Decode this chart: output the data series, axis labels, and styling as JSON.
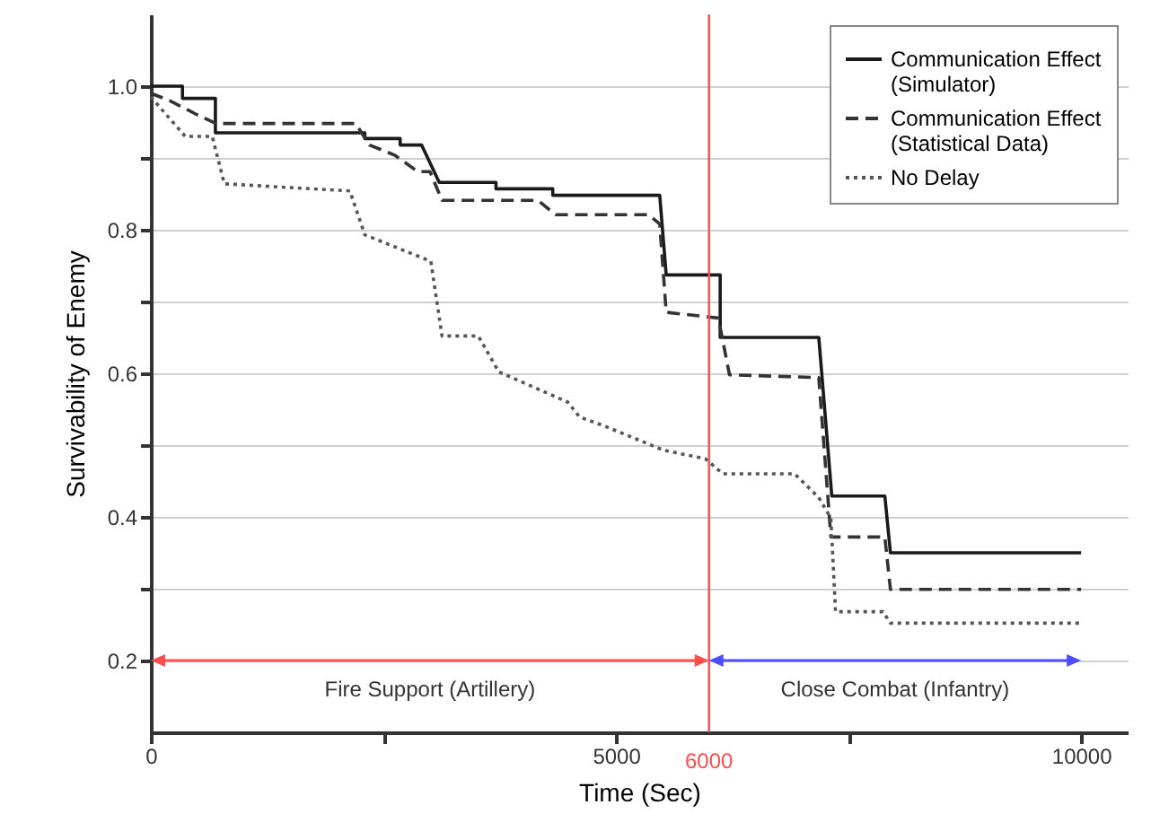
{
  "chart_data": {
    "type": "line",
    "xlabel": "Time (Sec)",
    "ylabel": "Survivability of Enemy",
    "xlim": [
      0,
      10500
    ],
    "xticks": [
      0,
      {
        "value": 2500,
        "label": null
      },
      5000,
      {
        "value": 7500,
        "label": null
      },
      10000
    ],
    "ylim": [
      0.1,
      1.1
    ],
    "yticks": [
      {
        "value": 0.2,
        "label": "0.2"
      },
      {
        "value": 0.3,
        "label": null
      },
      {
        "value": 0.4,
        "label": "0.4"
      },
      {
        "value": 0.5,
        "label": null
      },
      {
        "value": 0.6,
        "label": "0.6"
      },
      {
        "value": 0.7,
        "label": null
      },
      {
        "value": 0.8,
        "label": "0.8"
      },
      {
        "value": 0.9,
        "label": null
      },
      {
        "value": 1.0,
        "label": "1.0"
      }
    ],
    "grid": "y",
    "legend": "top right",
    "marker": "none",
    "series": [
      {
        "name": "Communication Effect (Simulator)",
        "color": "#1a1a1a",
        "line_style": "solid",
        "x": [
          0,
          340,
          340,
          694,
          694,
          2300,
          2300,
          2680,
          2680,
          2910,
          3100,
          3710,
          3710,
          4320,
          4320,
          5470,
          5540,
          6120,
          6120,
          7180,
          7320,
          7890,
          7950,
          10000
        ],
        "values": [
          1.0,
          1.0,
          0.983,
          0.983,
          0.935,
          0.935,
          0.927,
          0.927,
          0.918,
          0.918,
          0.866,
          0.866,
          0.857,
          0.857,
          0.848,
          0.848,
          0.737,
          0.737,
          0.65,
          0.65,
          0.429,
          0.429,
          0.35,
          0.35
        ]
      },
      {
        "name": "Communication Effect (Statistical Data)",
        "color": "#333333",
        "line_style": "dashed",
        "x": [
          0,
          200,
          500,
          700,
          2200,
          2350,
          2620,
          2870,
          3000,
          3130,
          4160,
          4350,
          5350,
          5470,
          5540,
          6100,
          6220,
          7180,
          7310,
          7890,
          7950,
          10000
        ],
        "values": [
          0.99,
          0.98,
          0.96,
          0.948,
          0.948,
          0.918,
          0.904,
          0.881,
          0.881,
          0.841,
          0.841,
          0.821,
          0.821,
          0.808,
          0.685,
          0.677,
          0.598,
          0.594,
          0.372,
          0.372,
          0.299,
          0.299
        ]
      },
      {
        "name": "No Delay",
        "color": "#555555",
        "line_style": "dotted",
        "x": [
          0,
          370,
          660,
          790,
          2140,
          2300,
          3010,
          3130,
          3520,
          3740,
          4480,
          4610,
          4870,
          5510,
          5960,
          6150,
          6920,
          7180,
          7310,
          7360,
          7870,
          7950,
          10000
        ],
        "values": [
          0.985,
          0.93,
          0.93,
          0.864,
          0.854,
          0.793,
          0.756,
          0.652,
          0.652,
          0.602,
          0.56,
          0.539,
          0.527,
          0.493,
          0.481,
          0.46,
          0.46,
          0.427,
          0.398,
          0.268,
          0.268,
          0.252,
          0.252
        ]
      }
    ],
    "ref_lines": [
      {
        "axis": "x",
        "value": 6000,
        "label": "6000",
        "color": "#ff4d4d"
      }
    ],
    "annotations": [
      "Fire Support (Artillery)",
      "Close Combat (Infantry)"
    ]
  }
}
